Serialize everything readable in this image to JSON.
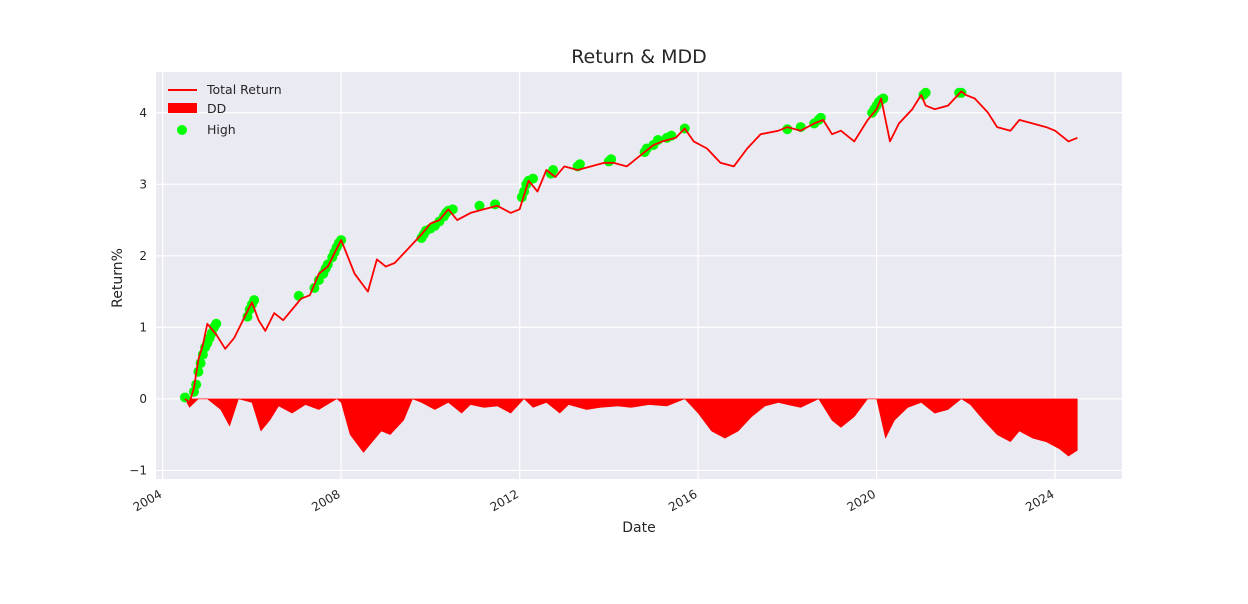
{
  "chart_data": {
    "type": "line",
    "title": "Return & MDD",
    "xlabel": "Date",
    "ylabel": "Return%",
    "x_ticks": [
      "2004",
      "2008",
      "2012",
      "2016",
      "2020",
      "2024"
    ],
    "y_ticks": [
      "−1",
      "0",
      "1",
      "2",
      "3",
      "4"
    ],
    "xlim": [
      2003.85,
      2025.5
    ],
    "ylim": [
      -1.12,
      4.57
    ],
    "grid": true,
    "legend_position": "top-left",
    "series": [
      {
        "name": "Total Return",
        "kind": "line",
        "color": "#ff0000",
        "x": [
          2004.5,
          2004.6,
          2004.7,
          2004.8,
          2004.9,
          2005.0,
          2005.2,
          2005.4,
          2005.6,
          2005.8,
          2006.0,
          2006.15,
          2006.3,
          2006.5,
          2006.7,
          2006.9,
          2007.1,
          2007.3,
          2007.5,
          2007.7,
          2007.9,
          2008.0,
          2008.3,
          2008.6,
          2008.8,
          2009.0,
          2009.2,
          2009.5,
          2009.8,
          2010.0,
          2010.2,
          2010.4,
          2010.6,
          2010.9,
          2011.2,
          2011.5,
          2011.8,
          2012.0,
          2012.2,
          2012.4,
          2012.6,
          2012.8,
          2013.0,
          2013.3,
          2013.6,
          2013.9,
          2014.1,
          2014.4,
          2014.7,
          2015.0,
          2015.2,
          2015.5,
          2015.7,
          2015.9,
          2016.2,
          2016.5,
          2016.8,
          2017.1,
          2017.4,
          2017.8,
          2018.0,
          2018.3,
          2018.6,
          2018.8,
          2019.0,
          2019.2,
          2019.5,
          2019.8,
          2020.0,
          2020.1,
          2020.3,
          2020.5,
          2020.8,
          2021.0,
          2021.1,
          2021.3,
          2021.6,
          2021.9,
          2022.0,
          2022.2,
          2022.5,
          2022.7,
          2023.0,
          2023.2,
          2023.5,
          2023.8,
          2024.0,
          2024.3,
          2024.5
        ],
        "values": [
          0.0,
          -0.05,
          0.15,
          0.55,
          0.75,
          1.05,
          0.9,
          0.7,
          0.85,
          1.1,
          1.35,
          1.1,
          0.95,
          1.2,
          1.1,
          1.25,
          1.4,
          1.45,
          1.75,
          1.85,
          2.1,
          2.22,
          1.75,
          1.5,
          1.95,
          1.85,
          1.9,
          2.1,
          2.3,
          2.45,
          2.5,
          2.65,
          2.5,
          2.6,
          2.65,
          2.7,
          2.6,
          2.65,
          3.05,
          2.9,
          3.2,
          3.1,
          3.25,
          3.2,
          3.25,
          3.3,
          3.3,
          3.25,
          3.4,
          3.55,
          3.6,
          3.65,
          3.78,
          3.6,
          3.5,
          3.3,
          3.25,
          3.5,
          3.7,
          3.75,
          3.8,
          3.75,
          3.85,
          3.9,
          3.7,
          3.75,
          3.6,
          3.9,
          4.05,
          4.2,
          3.6,
          3.85,
          4.05,
          4.25,
          4.1,
          4.05,
          4.1,
          4.3,
          4.25,
          4.2,
          4.0,
          3.8,
          3.75,
          3.9,
          3.85,
          3.8,
          3.75,
          3.6,
          3.65
        ]
      },
      {
        "name": "DD",
        "kind": "area",
        "color": "#ff0000",
        "x": [
          2004.5,
          2004.6,
          2004.8,
          2005.0,
          2005.3,
          2005.5,
          2005.7,
          2006.0,
          2006.2,
          2006.4,
          2006.6,
          2006.9,
          2007.2,
          2007.5,
          2007.9,
          2008.0,
          2008.2,
          2008.5,
          2008.7,
          2008.9,
          2009.1,
          2009.4,
          2009.6,
          2009.8,
          2010.1,
          2010.4,
          2010.7,
          2010.9,
          2011.2,
          2011.5,
          2011.8,
          2012.1,
          2012.3,
          2012.6,
          2012.9,
          2013.1,
          2013.5,
          2013.8,
          2014.2,
          2014.5,
          2014.9,
          2015.3,
          2015.7,
          2016.0,
          2016.3,
          2016.6,
          2016.9,
          2017.2,
          2017.5,
          2017.8,
          2018.0,
          2018.3,
          2018.7,
          2019.0,
          2019.2,
          2019.5,
          2019.8,
          2020.0,
          2020.2,
          2020.4,
          2020.7,
          2021.0,
          2021.3,
          2021.6,
          2021.9,
          2022.1,
          2022.4,
          2022.7,
          2023.0,
          2023.2,
          2023.5,
          2023.8,
          2024.1,
          2024.3,
          2024.5
        ],
        "values": [
          0.0,
          -0.12,
          0.0,
          0.0,
          -0.15,
          -0.38,
          0.0,
          -0.05,
          -0.45,
          -0.3,
          -0.1,
          -0.2,
          -0.08,
          -0.15,
          0.0,
          -0.05,
          -0.5,
          -0.75,
          -0.6,
          -0.45,
          -0.5,
          -0.3,
          0.0,
          -0.05,
          -0.15,
          -0.05,
          -0.2,
          -0.08,
          -0.12,
          -0.1,
          -0.2,
          0.0,
          -0.12,
          -0.05,
          -0.2,
          -0.08,
          -0.15,
          -0.12,
          -0.1,
          -0.12,
          -0.08,
          -0.1,
          0.0,
          -0.2,
          -0.45,
          -0.55,
          -0.45,
          -0.25,
          -0.1,
          -0.05,
          -0.08,
          -0.12,
          0.0,
          -0.3,
          -0.4,
          -0.25,
          0.0,
          0.0,
          -0.55,
          -0.3,
          -0.12,
          -0.05,
          -0.2,
          -0.15,
          0.0,
          -0.08,
          -0.3,
          -0.5,
          -0.6,
          -0.45,
          -0.55,
          -0.6,
          -0.7,
          -0.8,
          -0.72
        ]
      },
      {
        "name": "High",
        "kind": "scatter",
        "color": "#00ff00",
        "x": [
          2004.5,
          2004.7,
          2004.75,
          2004.8,
          2004.85,
          2004.9,
          2004.95,
          2005.0,
          2005.05,
          2005.1,
          2005.15,
          2005.2,
          2005.9,
          2005.95,
          2006.0,
          2006.05,
          2007.05,
          2007.4,
          2007.5,
          2007.6,
          2007.65,
          2007.7,
          2007.8,
          2007.85,
          2007.9,
          2007.95,
          2008.0,
          2009.8,
          2009.85,
          2009.9,
          2010.0,
          2010.1,
          2010.2,
          2010.3,
          2010.35,
          2010.4,
          2010.5,
          2011.1,
          2011.45,
          2012.05,
          2012.1,
          2012.15,
          2012.2,
          2012.3,
          2012.7,
          2012.75,
          2013.3,
          2013.35,
          2014.0,
          2014.05,
          2014.8,
          2014.85,
          2015.0,
          2015.1,
          2015.3,
          2015.4,
          2015.7,
          2018.0,
          2018.3,
          2018.6,
          2018.7,
          2018.75,
          2019.9,
          2019.95,
          2020.0,
          2020.05,
          2020.1,
          2020.15,
          2021.05,
          2021.1,
          2021.85,
          2021.9
        ],
        "values": [
          0.02,
          0.1,
          0.2,
          0.38,
          0.5,
          0.62,
          0.72,
          0.78,
          0.85,
          0.92,
          1.0,
          1.05,
          1.15,
          1.25,
          1.32,
          1.38,
          1.44,
          1.55,
          1.66,
          1.75,
          1.82,
          1.88,
          1.98,
          2.05,
          2.12,
          2.18,
          2.22,
          2.25,
          2.3,
          2.35,
          2.38,
          2.42,
          2.48,
          2.55,
          2.6,
          2.63,
          2.65,
          2.7,
          2.72,
          2.82,
          2.9,
          3.0,
          3.05,
          3.08,
          3.15,
          3.2,
          3.25,
          3.28,
          3.32,
          3.35,
          3.45,
          3.5,
          3.55,
          3.62,
          3.65,
          3.68,
          3.78,
          3.77,
          3.8,
          3.85,
          3.9,
          3.93,
          4.0,
          4.05,
          4.1,
          4.15,
          4.18,
          4.2,
          4.25,
          4.28,
          4.28,
          4.28
        ]
      }
    ]
  }
}
